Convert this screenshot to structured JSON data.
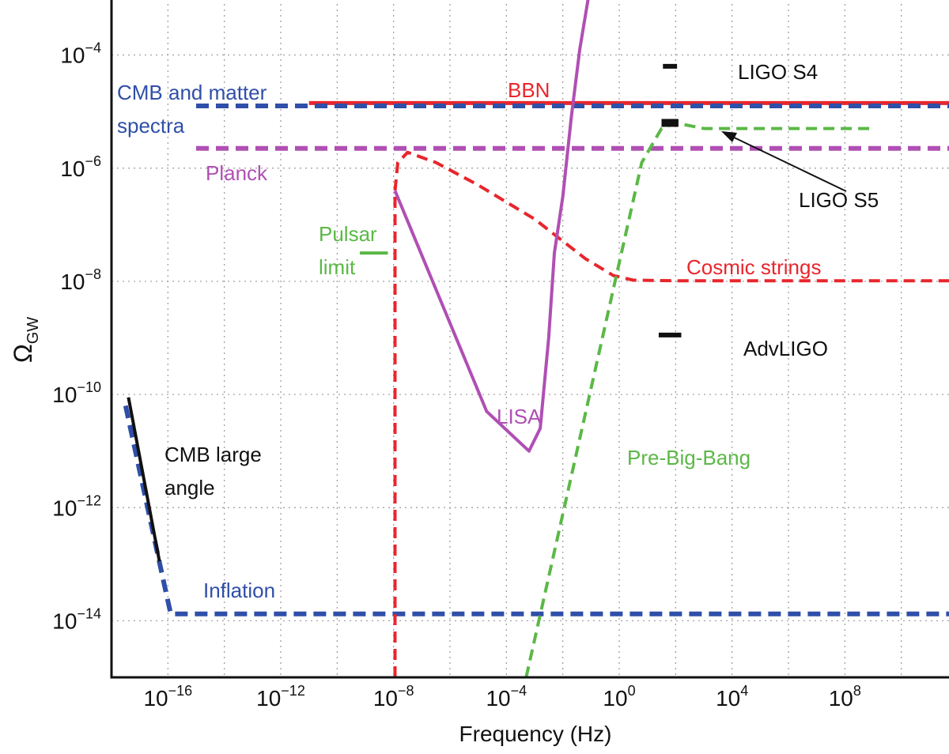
{
  "chart_data": {
    "type": "line",
    "xlabel": "Frequency (Hz)",
    "ylabel_symbol": "Ω",
    "ylabel_subscript": "GW",
    "x_scale": "log",
    "y_scale": "log",
    "xlim_log10": [
      -18,
      12
    ],
    "ylim_log10": [
      -15,
      -3
    ],
    "grid": true,
    "x_ticks": [
      {
        "base": "10",
        "exp": "−16",
        "log10": -16
      },
      {
        "base": "10",
        "exp": "−12",
        "log10": -12
      },
      {
        "base": "10",
        "exp": "−8",
        "log10": -8
      },
      {
        "base": "10",
        "exp": "−4",
        "log10": -4
      },
      {
        "base": "10",
        "exp": "0",
        "log10": 0
      },
      {
        "base": "10",
        "exp": "4",
        "log10": 4
      },
      {
        "base": "10",
        "exp": "8",
        "log10": 8
      }
    ],
    "y_ticks": [
      {
        "base": "10",
        "exp": "−4",
        "log10": -4
      },
      {
        "base": "10",
        "exp": "−6",
        "log10": -6
      },
      {
        "base": "10",
        "exp": "−8",
        "log10": -8
      },
      {
        "base": "10",
        "exp": "−10",
        "log10": -10
      },
      {
        "base": "10",
        "exp": "−12",
        "log10": -12
      },
      {
        "base": "10",
        "exp": "−14",
        "log10": -14
      }
    ],
    "series": [
      {
        "key": "bbn",
        "color": "#e8262c",
        "style": "solid",
        "width": 5,
        "points": [
          [
            -11,
            -4.85
          ],
          [
            12,
            -4.85
          ]
        ]
      },
      {
        "key": "cmb-matter",
        "color": "#2f4fa8",
        "style": "dashed",
        "width": 6,
        "points": [
          [
            -15,
            -4.9
          ],
          [
            12,
            -4.9
          ]
        ]
      },
      {
        "key": "planck",
        "color": "#b04fb4",
        "style": "dashed",
        "width": 6,
        "points": [
          [
            -15,
            -5.65
          ],
          [
            12,
            -5.65
          ]
        ]
      },
      {
        "key": "inflation",
        "color": "#2f4fa8",
        "style": "dashed",
        "width": 6,
        "points": [
          [
            -17.5,
            -10.2
          ],
          [
            -16.2,
            -13.2
          ],
          [
            -15.9,
            -13.88
          ],
          [
            12,
            -13.88
          ]
        ]
      },
      {
        "key": "cmb-large-angle",
        "color": "#111111",
        "style": "solid",
        "width": 4,
        "points": [
          [
            -17.4,
            -10.05
          ],
          [
            -16.3,
            -12.95
          ]
        ]
      },
      {
        "key": "pulsar-limit",
        "color": "#5bb846",
        "style": "solid",
        "width": 4,
        "points": [
          [
            -9.2,
            -7.5
          ],
          [
            -8.2,
            -7.5
          ]
        ]
      },
      {
        "key": "cosmic-strings",
        "color": "#e8262c",
        "style": "dashed",
        "width": 4,
        "points": [
          [
            -7.95,
            -15
          ],
          [
            -7.95,
            -6.4
          ],
          [
            -7.85,
            -5.9
          ],
          [
            -7.5,
            -5.72
          ],
          [
            -6.5,
            -5.9
          ],
          [
            -5,
            -6.3
          ],
          [
            -3,
            -6.9
          ],
          [
            -1.2,
            -7.6
          ],
          [
            -0.2,
            -7.9
          ],
          [
            0.5,
            -7.98
          ],
          [
            2,
            -7.99
          ],
          [
            12,
            -7.99
          ]
        ]
      },
      {
        "key": "pre-big-bang",
        "color": "#5bb846",
        "style": "dashed",
        "width": 4,
        "points": [
          [
            -3.3,
            -15
          ],
          [
            0.8,
            -5.9
          ],
          [
            1.5,
            -5.3
          ],
          [
            2,
            -5.2
          ],
          [
            3,
            -5.3
          ],
          [
            5,
            -5.3
          ],
          [
            9,
            -5.3
          ]
        ]
      },
      {
        "key": "lisa",
        "color": "#b04fb4",
        "style": "solid",
        "width": 4,
        "points": [
          [
            -7.95,
            -6.4
          ],
          [
            -4.7,
            -10.3
          ],
          [
            -3.2,
            -11.0
          ],
          [
            -2.8,
            -10.6
          ],
          [
            -2.5,
            -9.0
          ],
          [
            -2.3,
            -7.5
          ],
          [
            -2.0,
            -6.5
          ],
          [
            -1.7,
            -5.1
          ],
          [
            -1.4,
            -3.9
          ],
          [
            -1.1,
            -3.0
          ]
        ]
      }
    ],
    "markers": [
      {
        "key": "ligo-s4",
        "x": 1.8,
        "y": -4.2,
        "halfwidth": 0.25,
        "thickness": 6
      },
      {
        "key": "ligo-s5",
        "x": 1.8,
        "y": -5.2,
        "halfwidth": 0.3,
        "thickness": 10
      },
      {
        "key": "advligo",
        "x": 1.8,
        "y": -8.95,
        "halfwidth": 0.4,
        "thickness": 6
      }
    ],
    "annotations": [
      {
        "key": "cmb-matter-label-1",
        "text": "CMB and matter",
        "color": "#2f4fa8"
      },
      {
        "key": "cmb-matter-label-2",
        "text": "spectra",
        "color": "#2f4fa8"
      },
      {
        "key": "bbn-label",
        "text": "BBN",
        "color": "#e8262c"
      },
      {
        "key": "planck-label",
        "text": "Planck",
        "color": "#b04fb4"
      },
      {
        "key": "pulsar-label-1",
        "text": "Pulsar",
        "color": "#5bb846"
      },
      {
        "key": "pulsar-label-2",
        "text": "limit",
        "color": "#5bb846"
      },
      {
        "key": "ligo-s4-label",
        "text": "LIGO S4",
        "color": "#111111"
      },
      {
        "key": "ligo-s5-label",
        "text": "LIGO S5",
        "color": "#111111"
      },
      {
        "key": "cosmic-strings-label",
        "text": "Cosmic strings",
        "color": "#e8262c"
      },
      {
        "key": "advligo-label",
        "text": "AdvLIGO",
        "color": "#111111"
      },
      {
        "key": "lisa-label",
        "text": "LISA",
        "color": "#b04fb4"
      },
      {
        "key": "pre-big-bang-label",
        "text": "Pre-Big-Bang",
        "color": "#5bb846"
      },
      {
        "key": "cmb-large-angle-label-1",
        "text": "CMB large",
        "color": "#111111"
      },
      {
        "key": "cmb-large-angle-label-2",
        "text": "angle",
        "color": "#111111"
      },
      {
        "key": "inflation-label",
        "text": "Inflation",
        "color": "#2f4fa8"
      }
    ]
  }
}
